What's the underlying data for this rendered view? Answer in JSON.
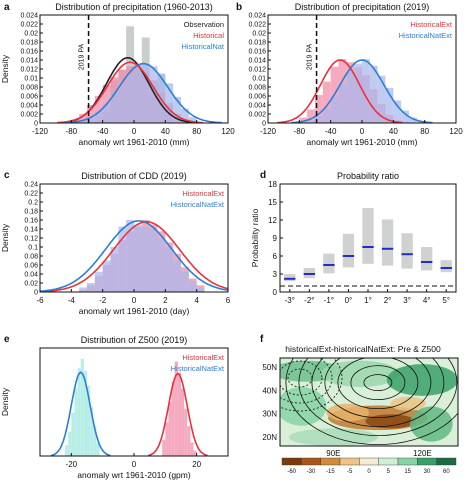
{
  "chart_data": [
    {
      "panel": "a",
      "type": "histogram+density",
      "title": "Distribution of precipitation (1960-2013)",
      "xlabel": "anomaly wrt 1961-2010 (mm)",
      "ylabel": "Density",
      "xlim": [
        -120,
        120
      ],
      "ylim": [
        0,
        0.024
      ],
      "xticks": [
        -120,
        -80,
        -40,
        0,
        40,
        80,
        120
      ],
      "yticks": [
        0,
        0.002,
        0.004,
        0.006,
        0.008,
        0.01,
        0.012,
        0.014,
        0.016,
        0.018,
        0.02,
        0.022,
        0.024
      ],
      "vline": {
        "x": -58,
        "label": "2019 PA"
      },
      "legend": {
        "position": "top-right",
        "entries": [
          {
            "name": "Observation",
            "color": "#222222"
          },
          {
            "name": "Historical",
            "color": "#e8323c"
          },
          {
            "name": "HistoricalNat",
            "color": "#2a7fd6"
          }
        ]
      },
      "bins": [
        -80,
        -70,
        -60,
        -50,
        -40,
        -30,
        -20,
        -10,
        0,
        10,
        20,
        30,
        40,
        50,
        60,
        70
      ],
      "series": [
        {
          "name": "Observation",
          "kind": "bars",
          "color": "#b5bcb8",
          "values": [
            0.0,
            0.0,
            0.0,
            0.0005,
            0.0025,
            0.0095,
            0.0119,
            0.0215,
            0.0125,
            0.019,
            0.0085,
            0.011,
            0.0045,
            0.0,
            0.0,
            0.0
          ]
        },
        {
          "name": "Historical",
          "kind": "bars",
          "color": "#f28aa8",
          "values": [
            0.0008,
            0.002,
            0.004,
            0.006,
            0.0085,
            0.0102,
            0.0118,
            0.0126,
            0.0131,
            0.0112,
            0.0095,
            0.0068,
            0.004,
            0.002,
            0.0008,
            0.0003
          ]
        },
        {
          "name": "HistoricalNat",
          "kind": "bars",
          "color": "#a9b8ee",
          "values": [
            0.0002,
            0.0006,
            0.0012,
            0.0025,
            0.0045,
            0.0068,
            0.009,
            0.0108,
            0.0123,
            0.0131,
            0.0126,
            0.0108,
            0.0088,
            0.0058,
            0.0032,
            0.0013
          ]
        },
        {
          "name": "Observation",
          "kind": "density",
          "color": "#222222",
          "mean": -8,
          "sd": 27,
          "peak": 0.0145
        },
        {
          "name": "Historical",
          "kind": "density",
          "color": "#e8323c",
          "mean": -5,
          "sd": 29,
          "peak": 0.0135
        },
        {
          "name": "HistoricalNat",
          "kind": "density",
          "color": "#2a7fd6",
          "mean": 12,
          "sd": 31,
          "peak": 0.0132
        }
      ]
    },
    {
      "panel": "b",
      "type": "histogram+density",
      "title": "Distribution of precipitation  (2019)",
      "xlabel": "anomaly wrt 1961-2010 (mm)",
      "ylabel": "",
      "xlim": [
        -120,
        120
      ],
      "ylim": [
        0,
        0.024
      ],
      "xticks": [
        -120,
        -80,
        -40,
        0,
        40,
        80,
        120
      ],
      "yticks": [
        0,
        0.002,
        0.004,
        0.006,
        0.008,
        0.01,
        0.012,
        0.014,
        0.016,
        0.018,
        0.02,
        0.022,
        0.024
      ],
      "vline": {
        "x": -58,
        "label": "2019 PA"
      },
      "legend": {
        "position": "top-right",
        "entries": [
          {
            "name": "HistoricalExt",
            "color": "#e8323c"
          },
          {
            "name": "HistoricalNatExt",
            "color": "#2a7fd6"
          }
        ]
      },
      "bins": [
        -80,
        -70,
        -60,
        -50,
        -40,
        -30,
        -20,
        -10,
        0,
        10,
        20,
        30,
        40,
        50,
        60,
        70
      ],
      "series": [
        {
          "name": "HistoricalExt",
          "kind": "bars",
          "color": "#f28aa8",
          "values": [
            0.0012,
            0.003,
            0.0062,
            0.0092,
            0.0125,
            0.0142,
            0.0135,
            0.0124,
            0.0106,
            0.0075,
            0.0042,
            0.0018,
            0.0006,
            0.0002,
            0.0,
            0.0
          ]
        },
        {
          "name": "HistoricalNatExt",
          "kind": "bars",
          "color": "#a9b8ee",
          "values": [
            0.0002,
            0.0006,
            0.0015,
            0.0032,
            0.0058,
            0.0088,
            0.0113,
            0.0132,
            0.0142,
            0.0127,
            0.0105,
            0.0078,
            0.005,
            0.0028,
            0.0012,
            0.0004
          ]
        },
        {
          "name": "HistoricalExt",
          "kind": "density",
          "color": "#e8323c",
          "mean": -28,
          "sd": 25,
          "peak": 0.014
        },
        {
          "name": "HistoricalNatExt",
          "kind": "density",
          "color": "#2a7fd6",
          "mean": 0,
          "sd": 28,
          "peak": 0.014
        }
      ]
    },
    {
      "panel": "c",
      "type": "histogram+density",
      "title": "Distribution of CDD (2019)",
      "xlabel": "anomaly wrt 1961-2010 (day)",
      "ylabel": "Density",
      "xlim": [
        -6,
        6
      ],
      "ylim": [
        0,
        0.24
      ],
      "xticks": [
        -6,
        -4,
        -2,
        0,
        2,
        4,
        6
      ],
      "yticks": [
        0,
        0.02,
        0.04,
        0.06,
        0.08,
        0.1,
        0.12,
        0.14,
        0.16,
        0.18,
        0.2,
        0.22,
        0.24
      ],
      "legend": {
        "position": "top-right",
        "entries": [
          {
            "name": "HistoricalExt",
            "color": "#e8323c"
          },
          {
            "name": "HistoricalNatExt",
            "color": "#2a7fd6"
          }
        ]
      },
      "bins": [
        -3.5,
        -3,
        -2.5,
        -2,
        -1.5,
        -1,
        -0.5,
        0,
        0.5,
        1,
        1.5,
        2,
        2.5,
        3,
        3.5,
        4
      ],
      "series": [
        {
          "name": "HistoricalExt",
          "kind": "bars",
          "color": "#f28aa8",
          "values": [
            0.005,
            0.015,
            0.035,
            0.06,
            0.085,
            0.115,
            0.135,
            0.145,
            0.16,
            0.15,
            0.135,
            0.11,
            0.085,
            0.055,
            0.03,
            0.015
          ]
        },
        {
          "name": "HistoricalNatExt",
          "kind": "bars",
          "color": "#a9b8ee",
          "values": [
            0.01,
            0.02,
            0.045,
            0.07,
            0.1,
            0.145,
            0.16,
            0.15,
            0.145,
            0.14,
            0.12,
            0.1,
            0.07,
            0.045,
            0.025,
            0.01
          ]
        },
        {
          "name": "HistoricalExt",
          "kind": "density",
          "color": "#e8323c",
          "mean": 0.8,
          "sd": 2.1,
          "peak": 0.156
        },
        {
          "name": "HistoricalNatExt",
          "kind": "density",
          "color": "#2a7fd6",
          "mean": 0.3,
          "sd": 2.1,
          "peak": 0.158
        }
      ]
    },
    {
      "panel": "d",
      "type": "box",
      "title": "Probability ratio",
      "xlabel": "",
      "ylabel": "Probability ratio",
      "ylim": [
        0,
        18
      ],
      "yticks": [
        0,
        3,
        6,
        9,
        12,
        15,
        18
      ],
      "categories": [
        "-3°",
        "-2°",
        "-1°",
        "0°",
        "1°",
        "2°",
        "3°",
        "4°",
        "5°"
      ],
      "reference_line": 1,
      "series": [
        {
          "name": "Probability ratio",
          "low": [
            1.8,
            2.3,
            3.1,
            4.1,
            4.7,
            4.4,
            3.9,
            3.6,
            3.3
          ],
          "median": [
            2.2,
            3.0,
            4.5,
            6.0,
            7.5,
            7.2,
            6.3,
            5.0,
            4.0
          ],
          "high": [
            3.0,
            4.0,
            6.4,
            9.7,
            14.0,
            12.1,
            9.8,
            7.5,
            5.3
          ]
        }
      ]
    },
    {
      "panel": "e",
      "type": "histogram+density",
      "title": "Distribution of Z500 (2019)",
      "xlabel": "anomaly wrt 1961-2010 (gpm)",
      "ylabel": "Density",
      "xlim": [
        -30,
        30
      ],
      "ylim": [
        0,
        0.08
      ],
      "xticks": [
        -20,
        0,
        20
      ],
      "legend": {
        "position": "top-right",
        "entries": [
          {
            "name": "HistoricalExt",
            "color": "#e8323c"
          },
          {
            "name": "HistoricalNatExt",
            "color": "#2a7fd6"
          }
        ]
      },
      "bins": [
        -22,
        -21,
        -20,
        -19,
        -18,
        -17,
        -16,
        -15,
        -14,
        -13,
        -12,
        9,
        10,
        11,
        12,
        13,
        14,
        15,
        16,
        17,
        18,
        19
      ],
      "series": [
        {
          "name": "HistoricalExt",
          "kind": "bars",
          "color": "#f28aa8",
          "values": [
            0,
            0,
            0,
            0,
            0,
            0,
            0,
            0,
            0,
            0,
            0,
            0.012,
            0.025,
            0.04,
            0.055,
            0.07,
            0.062,
            0.05,
            0.035,
            0.022,
            0.01,
            0.004
          ]
        },
        {
          "name": "HistoricalNatExt",
          "kind": "bars",
          "color": "#9fe8e0",
          "values": [
            0.008,
            0.018,
            0.032,
            0.05,
            0.065,
            0.072,
            0.063,
            0.052,
            0.036,
            0.022,
            0.01,
            0,
            0,
            0,
            0,
            0,
            0,
            0,
            0,
            0,
            0,
            0
          ]
        },
        {
          "name": "HistoricalExt",
          "kind": "density",
          "color": "#e8323c",
          "mean": 14,
          "sd": 3.0,
          "peak": 0.061
        },
        {
          "name": "HistoricalNatExt",
          "kind": "density",
          "color": "#2a7fd6",
          "mean": -17,
          "sd": 3.0,
          "peak": 0.062
        }
      ]
    },
    {
      "panel": "f",
      "type": "heatmap",
      "title": "historicalExt-historicalNatExt: Pre & Z500",
      "lat_labels": [
        "50N",
        "40N",
        "30N",
        "20N"
      ],
      "lon_labels": [
        "90E",
        "120E"
      ],
      "colorbar": {
        "ticks": [
          "-60",
          "-30",
          "-15",
          "-5",
          "0",
          "5",
          "15",
          "30",
          "60"
        ],
        "colors": [
          "#7a3a0c",
          "#a8561e",
          "#cf8a3c",
          "#ebc486",
          "#f6ead0",
          "#cfeed7",
          "#86d3a6",
          "#3aa06a",
          "#1c6b43"
        ]
      }
    }
  ]
}
